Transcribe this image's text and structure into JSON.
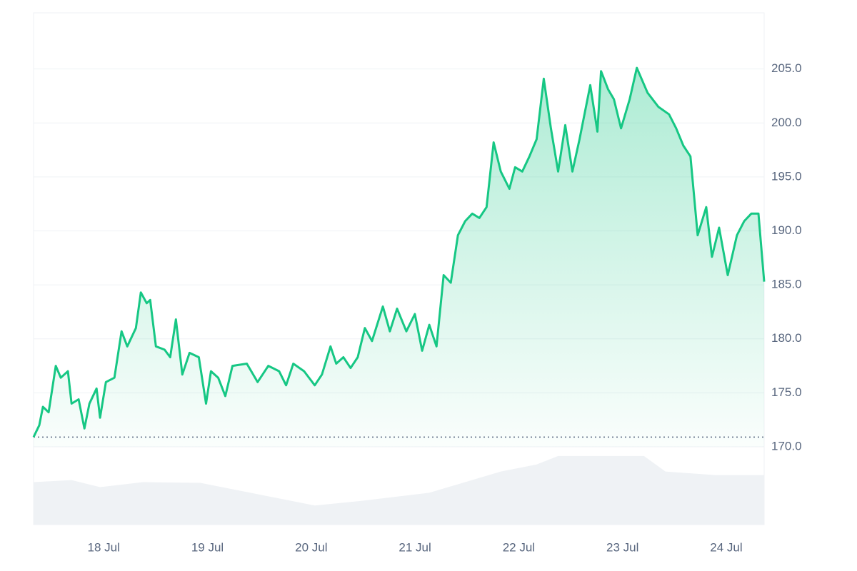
{
  "chart_data": {
    "type": "line",
    "x": [
      17.324,
      17.379,
      17.414,
      17.469,
      17.538,
      17.586,
      17.655,
      17.69,
      17.758,
      17.814,
      17.862,
      17.931,
      17.965,
      18.021,
      18.103,
      18.172,
      18.227,
      18.31,
      18.358,
      18.414,
      18.448,
      18.503,
      18.586,
      18.641,
      18.696,
      18.758,
      18.827,
      18.917,
      18.986,
      19.034,
      19.103,
      19.172,
      19.241,
      19.379,
      19.483,
      19.586,
      19.69,
      19.758,
      19.827,
      19.931,
      20.034,
      20.103,
      20.186,
      20.241,
      20.31,
      20.379,
      20.448,
      20.517,
      20.586,
      20.69,
      20.758,
      20.827,
      20.917,
      20.999,
      21.069,
      21.138,
      21.207,
      21.276,
      21.345,
      21.414,
      21.483,
      21.552,
      21.62,
      21.69,
      21.758,
      21.827,
      21.91,
      21.965,
      22.034,
      22.103,
      22.172,
      22.241,
      22.31,
      22.379,
      22.448,
      22.517,
      22.586,
      22.689,
      22.758,
      22.793,
      22.862,
      22.917,
      22.986,
      23.069,
      23.138,
      23.241,
      23.345,
      23.448,
      23.517,
      23.586,
      23.655,
      23.724,
      23.807,
      23.862,
      23.931,
      24.014,
      24.103,
      24.172,
      24.241,
      24.31,
      24.365
    ],
    "values": [
      170.9,
      172,
      173.7,
      173.2,
      177.5,
      176.4,
      177,
      174,
      174.4,
      171.7,
      174,
      175.4,
      172.7,
      176,
      176.4,
      180.7,
      179.3,
      181,
      184.3,
      183.3,
      183.6,
      179.3,
      179,
      178.3,
      181.8,
      176.7,
      178.7,
      178.3,
      174,
      177,
      176.4,
      174.7,
      177.5,
      177.7,
      176,
      177.5,
      177,
      175.7,
      177.7,
      177,
      175.7,
      176.7,
      179.3,
      177.7,
      178.3,
      177.3,
      178.3,
      181,
      179.8,
      183,
      180.7,
      182.8,
      180.7,
      182.3,
      178.9,
      181.3,
      179.3,
      185.9,
      185.2,
      189.6,
      190.9,
      191.6,
      191.2,
      192.2,
      198.2,
      195.5,
      193.9,
      195.9,
      195.5,
      196.9,
      198.5,
      204.1,
      199.5,
      195.5,
      199.8,
      195.5,
      198.5,
      203.5,
      199.2,
      204.8,
      203.1,
      202.2,
      199.5,
      202.2,
      205.1,
      202.8,
      201.5,
      200.8,
      199.5,
      197.9,
      196.9,
      189.6,
      192.2,
      187.6,
      190.3,
      185.9,
      189.6,
      190.9,
      191.6,
      191.6,
      185.3
    ],
    "color": "#16c784",
    "xlim": [
      17.324,
      24.365
    ],
    "xticks": [
      {
        "value": 18,
        "label": "18 Jul"
      },
      {
        "value": 19,
        "label": "19 Jul"
      },
      {
        "value": 20,
        "label": "20 Jul"
      },
      {
        "value": 21,
        "label": "21 Jul"
      },
      {
        "value": 22,
        "label": "22 Jul"
      },
      {
        "value": 23,
        "label": "23 Jul"
      },
      {
        "value": 24,
        "label": "24 Jul"
      }
    ],
    "ylim": [
      170,
      210.2
    ],
    "yticks": [
      {
        "value": 170,
        "label": "170.0"
      },
      {
        "value": 175,
        "label": "175.0"
      },
      {
        "value": 180,
        "label": "180.0"
      },
      {
        "value": 185,
        "label": "185.0"
      },
      {
        "value": 190,
        "label": "190.0"
      },
      {
        "value": 195,
        "label": "195.0"
      },
      {
        "value": 200,
        "label": "200.0"
      },
      {
        "value": 205,
        "label": "205.0"
      }
    ],
    "grid": true,
    "volume": {
      "x": [
        17.324,
        17.69,
        17.965,
        18.379,
        18.931,
        19.414,
        20.034,
        20.448,
        21.138,
        21.827,
        22.172,
        22.379,
        23.207,
        23.414,
        23.897,
        24.365
      ],
      "values": [
        60,
        63,
        53,
        60,
        59,
        45,
        27,
        33,
        45,
        75,
        85,
        97,
        97,
        75,
        70,
        70
      ],
      "ylim": [
        0,
        110
      ],
      "color": "#eff2f5"
    }
  }
}
